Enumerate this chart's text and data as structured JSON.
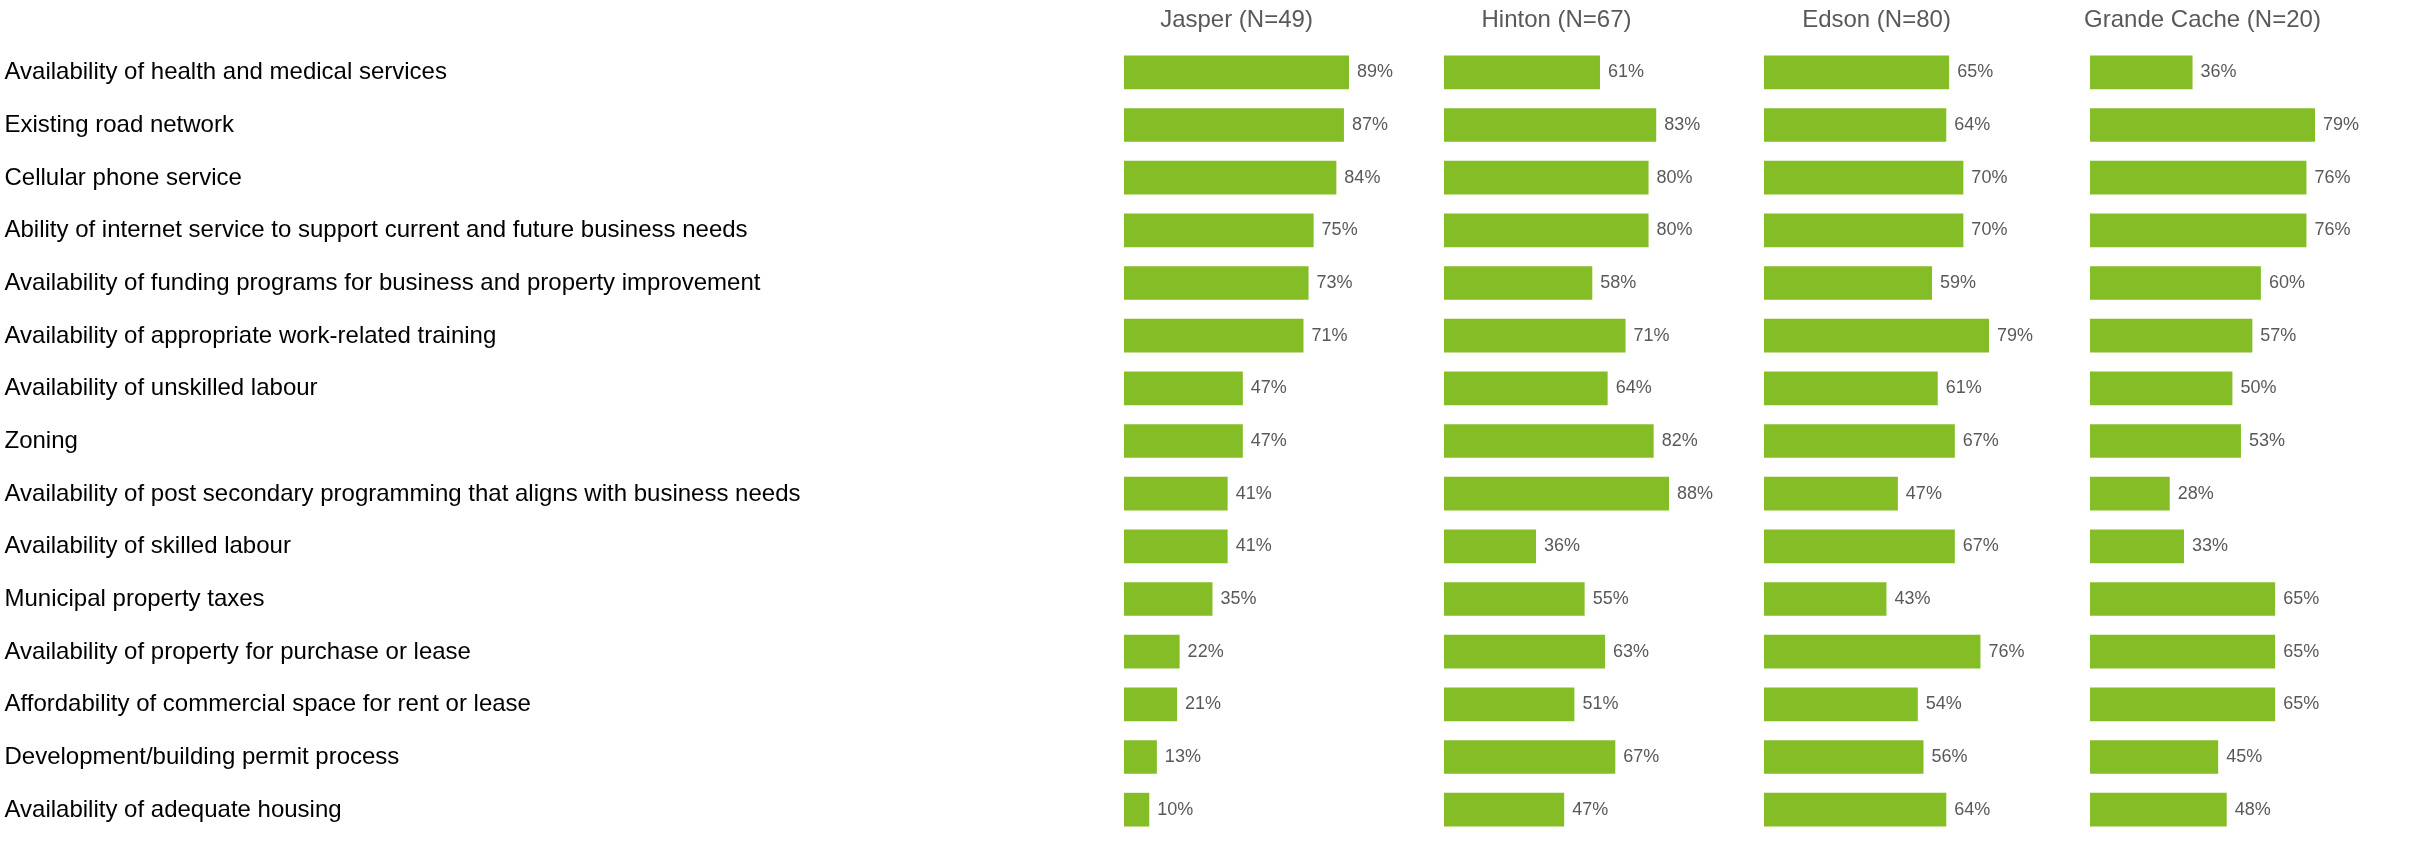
{
  "chart_data": [
    {
      "type": "bar",
      "orientation": "horizontal",
      "title": "Jasper (N=49)",
      "color": "#84bd26",
      "tick_labels": "y",
      "categories": [
        "Availability of health and medical services",
        "Existing road network",
        "Cellular phone service",
        "Ability of internet service to support current and future business needs",
        "Availability of funding programs for business and property improvement",
        "Availability of appropriate work-related training",
        "Availability of unskilled labour",
        "Zoning",
        "Availability of post secondary programming that aligns with business needs",
        "Availability of skilled labour",
        "Municipal property taxes",
        "Availability of property for purchase or lease",
        "Affordability of commercial space for rent or lease",
        "Development/building permit process",
        "Availability of adequate housing"
      ],
      "values": [
        89,
        87,
        84,
        75,
        73,
        71,
        47,
        47,
        41,
        41,
        35,
        22,
        21,
        13,
        10
      ],
      "value_labels": [
        "89%",
        "87%",
        "84%",
        "75%",
        "73%",
        "71%",
        "47%",
        "47%",
        "41%",
        "41%",
        "35%",
        "22%",
        "21%",
        "13%",
        "10%"
      ]
    },
    {
      "type": "bar",
      "orientation": "horizontal",
      "title": "Hinton (N=67)",
      "color": "#84bd26",
      "tick_labels": false,
      "values": [
        61,
        83,
        80,
        80,
        58,
        71,
        64,
        82,
        88,
        36,
        55,
        63,
        51,
        67,
        47
      ],
      "value_labels": [
        "61%",
        "83%",
        "80%",
        "80%",
        "58%",
        "71%",
        "64%",
        "82%",
        "88%",
        "36%",
        "55%",
        "63%",
        "51%",
        "67%",
        "47%"
      ]
    },
    {
      "type": "bar",
      "orientation": "horizontal",
      "title": "Edson (N=80)",
      "color": "#84bd26",
      "tick_labels": false,
      "values": [
        65,
        64,
        70,
        70,
        59,
        79,
        61,
        67,
        47,
        67,
        43,
        76,
        54,
        56,
        64
      ],
      "value_labels": [
        "65%",
        "64%",
        "70%",
        "70%",
        "59%",
        "79%",
        "61%",
        "67%",
        "47%",
        "67%",
        "43%",
        "76%",
        "54%",
        "56%",
        "64%"
      ]
    },
    {
      "type": "bar",
      "orientation": "horizontal",
      "title": "Grande Cache (N=20)",
      "color": "#84bd26",
      "tick_labels": false,
      "values": [
        36,
        79,
        76,
        76,
        60,
        57,
        50,
        53,
        28,
        33,
        65,
        65,
        65,
        45,
        48
      ],
      "value_labels": [
        "36%",
        "79%",
        "76%",
        "76%",
        "60%",
        "57%",
        "50%",
        "53%",
        "28%",
        "33%",
        "65%",
        "65%",
        "65%",
        "45%",
        "48%"
      ]
    }
  ]
}
